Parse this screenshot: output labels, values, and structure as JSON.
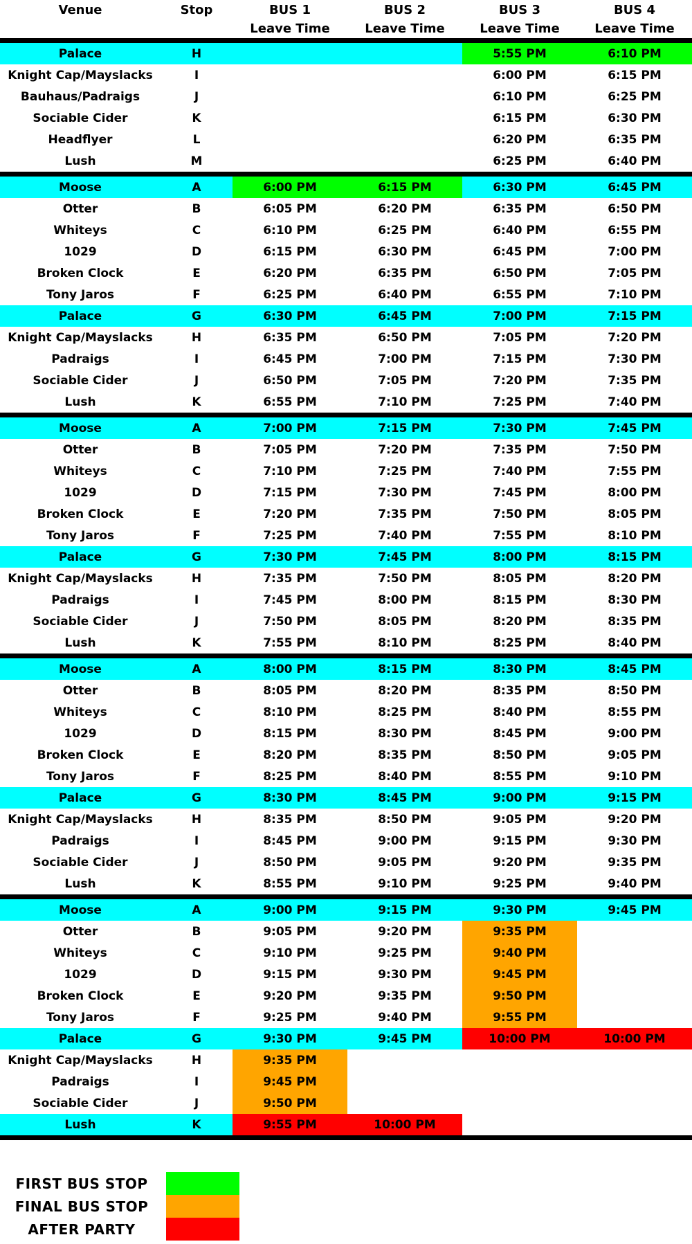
{
  "colors": {
    "cyan": "#00FFFF",
    "green": "#00FF00",
    "orange": "#FFA500",
    "red": "#FF0000",
    "white": "#FFFFFF"
  },
  "header": {
    "venue": "Venue",
    "stop": "Stop",
    "buses": [
      {
        "name": "BUS 1",
        "sub": "Leave Time"
      },
      {
        "name": "BUS 2",
        "sub": "Leave Time"
      },
      {
        "name": "BUS 3",
        "sub": "Leave Time"
      },
      {
        "name": "BUS 4",
        "sub": "Leave Time"
      }
    ]
  },
  "sections": [
    {
      "rows": [
        {
          "v": "Palace",
          "s": "H",
          "hl": true,
          "t": [
            "",
            "",
            "5:55 PM",
            "6:10 PM"
          ],
          "c": [
            "cyan",
            "cyan",
            "green",
            "green"
          ]
        },
        {
          "v": "Knight Cap/Mayslacks",
          "s": "I",
          "hl": false,
          "t": [
            "",
            "",
            "6:00 PM",
            "6:15 PM"
          ],
          "c": [
            "white",
            "white",
            "white",
            "white"
          ]
        },
        {
          "v": "Bauhaus/Padraigs",
          "s": "J",
          "hl": false,
          "t": [
            "",
            "",
            "6:10 PM",
            "6:25 PM"
          ],
          "c": [
            "white",
            "white",
            "white",
            "white"
          ]
        },
        {
          "v": "Sociable Cider",
          "s": "K",
          "hl": false,
          "t": [
            "",
            "",
            "6:15 PM",
            "6:30 PM"
          ],
          "c": [
            "white",
            "white",
            "white",
            "white"
          ]
        },
        {
          "v": "Headflyer",
          "s": "L",
          "hl": false,
          "t": [
            "",
            "",
            "6:20 PM",
            "6:35 PM"
          ],
          "c": [
            "white",
            "white",
            "white",
            "white"
          ]
        },
        {
          "v": "Lush",
          "s": "M",
          "hl": false,
          "t": [
            "",
            "",
            "6:25 PM",
            "6:40 PM"
          ],
          "c": [
            "white",
            "white",
            "white",
            "white"
          ]
        }
      ]
    },
    {
      "rows": [
        {
          "v": "Moose",
          "s": "A",
          "hl": true,
          "t": [
            "6:00 PM",
            "6:15 PM",
            "6:30 PM",
            "6:45 PM"
          ],
          "c": [
            "green",
            "green",
            "cyan",
            "cyan"
          ]
        },
        {
          "v": "Otter",
          "s": "B",
          "hl": false,
          "t": [
            "6:05 PM",
            "6:20 PM",
            "6:35 PM",
            "6:50 PM"
          ],
          "c": [
            "white",
            "white",
            "white",
            "white"
          ]
        },
        {
          "v": "Whiteys",
          "s": "C",
          "hl": false,
          "t": [
            "6:10 PM",
            "6:25 PM",
            "6:40 PM",
            "6:55 PM"
          ],
          "c": [
            "white",
            "white",
            "white",
            "white"
          ]
        },
        {
          "v": "1029",
          "s": "D",
          "hl": false,
          "t": [
            "6:15 PM",
            "6:30 PM",
            "6:45 PM",
            "7:00 PM"
          ],
          "c": [
            "white",
            "white",
            "white",
            "white"
          ]
        },
        {
          "v": "Broken Clock",
          "s": "E",
          "hl": false,
          "t": [
            "6:20 PM",
            "6:35 PM",
            "6:50 PM",
            "7:05 PM"
          ],
          "c": [
            "white",
            "white",
            "white",
            "white"
          ]
        },
        {
          "v": "Tony Jaros",
          "s": "F",
          "hl": false,
          "t": [
            "6:25 PM",
            "6:40 PM",
            "6:55 PM",
            "7:10 PM"
          ],
          "c": [
            "white",
            "white",
            "white",
            "white"
          ]
        },
        {
          "v": "Palace",
          "s": "G",
          "hl": true,
          "t": [
            "6:30 PM",
            "6:45 PM",
            "7:00 PM",
            "7:15 PM"
          ],
          "c": [
            "cyan",
            "cyan",
            "cyan",
            "cyan"
          ]
        },
        {
          "v": "Knight Cap/Mayslacks",
          "s": "H",
          "hl": false,
          "t": [
            "6:35 PM",
            "6:50 PM",
            "7:05 PM",
            "7:20 PM"
          ],
          "c": [
            "white",
            "white",
            "white",
            "white"
          ]
        },
        {
          "v": "Padraigs",
          "s": "I",
          "hl": false,
          "t": [
            "6:45 PM",
            "7:00 PM",
            "7:15 PM",
            "7:30 PM"
          ],
          "c": [
            "white",
            "white",
            "white",
            "white"
          ]
        },
        {
          "v": "Sociable Cider",
          "s": "J",
          "hl": false,
          "t": [
            "6:50 PM",
            "7:05 PM",
            "7:20 PM",
            "7:35 PM"
          ],
          "c": [
            "white",
            "white",
            "white",
            "white"
          ]
        },
        {
          "v": "Lush",
          "s": "K",
          "hl": false,
          "t": [
            "6:55 PM",
            "7:10 PM",
            "7:25 PM",
            "7:40 PM"
          ],
          "c": [
            "white",
            "white",
            "white",
            "white"
          ]
        }
      ]
    },
    {
      "rows": [
        {
          "v": "Moose",
          "s": "A",
          "hl": true,
          "t": [
            "7:00 PM",
            "7:15 PM",
            "7:30 PM",
            "7:45 PM"
          ],
          "c": [
            "cyan",
            "cyan",
            "cyan",
            "cyan"
          ]
        },
        {
          "v": "Otter",
          "s": "B",
          "hl": false,
          "t": [
            "7:05 PM",
            "7:20 PM",
            "7:35 PM",
            "7:50 PM"
          ],
          "c": [
            "white",
            "white",
            "white",
            "white"
          ]
        },
        {
          "v": "Whiteys",
          "s": "C",
          "hl": false,
          "t": [
            "7:10 PM",
            "7:25 PM",
            "7:40 PM",
            "7:55 PM"
          ],
          "c": [
            "white",
            "white",
            "white",
            "white"
          ]
        },
        {
          "v": "1029",
          "s": "D",
          "hl": false,
          "t": [
            "7:15 PM",
            "7:30 PM",
            "7:45 PM",
            "8:00 PM"
          ],
          "c": [
            "white",
            "white",
            "white",
            "white"
          ]
        },
        {
          "v": "Broken Clock",
          "s": "E",
          "hl": false,
          "t": [
            "7:20 PM",
            "7:35 PM",
            "7:50 PM",
            "8:05 PM"
          ],
          "c": [
            "white",
            "white",
            "white",
            "white"
          ]
        },
        {
          "v": "Tony Jaros",
          "s": "F",
          "hl": false,
          "t": [
            "7:25 PM",
            "7:40 PM",
            "7:55 PM",
            "8:10 PM"
          ],
          "c": [
            "white",
            "white",
            "white",
            "white"
          ]
        },
        {
          "v": "Palace",
          "s": "G",
          "hl": true,
          "t": [
            "7:30 PM",
            "7:45 PM",
            "8:00 PM",
            "8:15 PM"
          ],
          "c": [
            "cyan",
            "cyan",
            "cyan",
            "cyan"
          ]
        },
        {
          "v": "Knight Cap/Mayslacks",
          "s": "H",
          "hl": false,
          "t": [
            "7:35 PM",
            "7:50 PM",
            "8:05 PM",
            "8:20 PM"
          ],
          "c": [
            "white",
            "white",
            "white",
            "white"
          ]
        },
        {
          "v": "Padraigs",
          "s": "I",
          "hl": false,
          "t": [
            "7:45 PM",
            "8:00 PM",
            "8:15 PM",
            "8:30 PM"
          ],
          "c": [
            "white",
            "white",
            "white",
            "white"
          ]
        },
        {
          "v": "Sociable Cider",
          "s": "J",
          "hl": false,
          "t": [
            "7:50 PM",
            "8:05 PM",
            "8:20 PM",
            "8:35 PM"
          ],
          "c": [
            "white",
            "white",
            "white",
            "white"
          ]
        },
        {
          "v": "Lush",
          "s": "K",
          "hl": false,
          "t": [
            "7:55 PM",
            "8:10 PM",
            "8:25 PM",
            "8:40 PM"
          ],
          "c": [
            "white",
            "white",
            "white",
            "white"
          ]
        }
      ]
    },
    {
      "rows": [
        {
          "v": "Moose",
          "s": "A",
          "hl": true,
          "t": [
            "8:00 PM",
            "8:15 PM",
            "8:30 PM",
            "8:45 PM"
          ],
          "c": [
            "cyan",
            "cyan",
            "cyan",
            "cyan"
          ]
        },
        {
          "v": "Otter",
          "s": "B",
          "hl": false,
          "t": [
            "8:05 PM",
            "8:20 PM",
            "8:35 PM",
            "8:50 PM"
          ],
          "c": [
            "white",
            "white",
            "white",
            "white"
          ]
        },
        {
          "v": "Whiteys",
          "s": "C",
          "hl": false,
          "t": [
            "8:10 PM",
            "8:25 PM",
            "8:40 PM",
            "8:55 PM"
          ],
          "c": [
            "white",
            "white",
            "white",
            "white"
          ]
        },
        {
          "v": "1029",
          "s": "D",
          "hl": false,
          "t": [
            "8:15 PM",
            "8:30 PM",
            "8:45 PM",
            "9:00 PM"
          ],
          "c": [
            "white",
            "white",
            "white",
            "white"
          ]
        },
        {
          "v": "Broken Clock",
          "s": "E",
          "hl": false,
          "t": [
            "8:20 PM",
            "8:35 PM",
            "8:50 PM",
            "9:05 PM"
          ],
          "c": [
            "white",
            "white",
            "white",
            "white"
          ]
        },
        {
          "v": "Tony Jaros",
          "s": "F",
          "hl": false,
          "t": [
            "8:25 PM",
            "8:40 PM",
            "8:55 PM",
            "9:10 PM"
          ],
          "c": [
            "white",
            "white",
            "white",
            "white"
          ]
        },
        {
          "v": "Palace",
          "s": "G",
          "hl": true,
          "t": [
            "8:30 PM",
            "8:45 PM",
            "9:00 PM",
            "9:15 PM"
          ],
          "c": [
            "cyan",
            "cyan",
            "cyan",
            "cyan"
          ]
        },
        {
          "v": "Knight Cap/Mayslacks",
          "s": "H",
          "hl": false,
          "t": [
            "8:35 PM",
            "8:50 PM",
            "9:05 PM",
            "9:20 PM"
          ],
          "c": [
            "white",
            "white",
            "white",
            "white"
          ]
        },
        {
          "v": "Padraigs",
          "s": "I",
          "hl": false,
          "t": [
            "8:45 PM",
            "9:00 PM",
            "9:15 PM",
            "9:30 PM"
          ],
          "c": [
            "white",
            "white",
            "white",
            "white"
          ]
        },
        {
          "v": "Sociable Cider",
          "s": "J",
          "hl": false,
          "t": [
            "8:50 PM",
            "9:05 PM",
            "9:20 PM",
            "9:35 PM"
          ],
          "c": [
            "white",
            "white",
            "white",
            "white"
          ]
        },
        {
          "v": "Lush",
          "s": "K",
          "hl": false,
          "t": [
            "8:55 PM",
            "9:10 PM",
            "9:25 PM",
            "9:40 PM"
          ],
          "c": [
            "white",
            "white",
            "white",
            "white"
          ]
        }
      ]
    },
    {
      "rows": [
        {
          "v": "Moose",
          "s": "A",
          "hl": true,
          "t": [
            "9:00 PM",
            "9:15 PM",
            "9:30 PM",
            "9:45 PM"
          ],
          "c": [
            "cyan",
            "cyan",
            "cyan",
            "cyan"
          ]
        },
        {
          "v": "Otter",
          "s": "B",
          "hl": false,
          "t": [
            "9:05 PM",
            "9:20 PM",
            "9:35 PM",
            ""
          ],
          "c": [
            "white",
            "white",
            "orange",
            "white"
          ]
        },
        {
          "v": "Whiteys",
          "s": "C",
          "hl": false,
          "t": [
            "9:10 PM",
            "9:25 PM",
            "9:40 PM",
            ""
          ],
          "c": [
            "white",
            "white",
            "orange",
            "white"
          ]
        },
        {
          "v": "1029",
          "s": "D",
          "hl": false,
          "t": [
            "9:15 PM",
            "9:30 PM",
            "9:45 PM",
            ""
          ],
          "c": [
            "white",
            "white",
            "orange",
            "white"
          ]
        },
        {
          "v": "Broken Clock",
          "s": "E",
          "hl": false,
          "t": [
            "9:20 PM",
            "9:35 PM",
            "9:50 PM",
            ""
          ],
          "c": [
            "white",
            "white",
            "orange",
            "white"
          ]
        },
        {
          "v": "Tony Jaros",
          "s": "F",
          "hl": false,
          "t": [
            "9:25 PM",
            "9:40 PM",
            "9:55 PM",
            ""
          ],
          "c": [
            "white",
            "white",
            "orange",
            "white"
          ]
        },
        {
          "v": "Palace",
          "s": "G",
          "hl": true,
          "t": [
            "9:30 PM",
            "9:45 PM",
            "10:00 PM",
            "10:00 PM"
          ],
          "c": [
            "cyan",
            "cyan",
            "red",
            "red"
          ]
        },
        {
          "v": "Knight Cap/Mayslacks",
          "s": "H",
          "hl": false,
          "t": [
            "9:35 PM",
            "",
            "",
            ""
          ],
          "c": [
            "orange",
            "white",
            "white",
            "white"
          ]
        },
        {
          "v": "Padraigs",
          "s": "I",
          "hl": false,
          "t": [
            "9:45 PM",
            "",
            "",
            ""
          ],
          "c": [
            "orange",
            "white",
            "white",
            "white"
          ]
        },
        {
          "v": "Sociable Cider",
          "s": "J",
          "hl": false,
          "t": [
            "9:50 PM",
            "",
            "",
            ""
          ],
          "c": [
            "orange",
            "white",
            "white",
            "white"
          ]
        },
        {
          "v": "Lush",
          "s": "K",
          "hl": true,
          "t": [
            "9:55 PM",
            "10:00 PM",
            "",
            ""
          ],
          "c": [
            "red",
            "red",
            "white",
            "white"
          ]
        }
      ]
    }
  ],
  "legend": [
    {
      "label": "FIRST BUS STOP",
      "color": "green"
    },
    {
      "label": "FINAL BUS STOP",
      "color": "orange"
    },
    {
      "label": "AFTER PARTY",
      "color": "red"
    }
  ]
}
